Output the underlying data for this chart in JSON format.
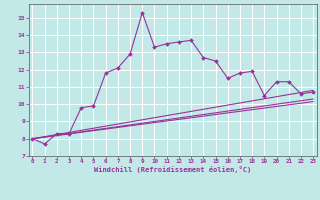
{
  "xlabel": "Windchill (Refroidissement éolien,°C)",
  "bg_color": "#c2e8e8",
  "line_color": "#993399",
  "grid_color": "#ffffff",
  "x_ticks": [
    0,
    1,
    2,
    3,
    4,
    5,
    6,
    7,
    8,
    9,
    10,
    11,
    12,
    13,
    14,
    15,
    16,
    17,
    18,
    19,
    20,
    21,
    22,
    23
  ],
  "y_ticks": [
    7,
    8,
    9,
    10,
    11,
    12,
    13,
    14,
    15
  ],
  "ylim": [
    7.0,
    15.8
  ],
  "xlim": [
    -0.3,
    23.3
  ],
  "series1_x": [
    0,
    1,
    2,
    3,
    4,
    5,
    6,
    7,
    8,
    9,
    10,
    11,
    12,
    13,
    14,
    15,
    16,
    17,
    18,
    19,
    20,
    21,
    22,
    23
  ],
  "series1_y": [
    8.0,
    7.7,
    8.3,
    8.3,
    9.8,
    9.9,
    11.8,
    12.1,
    12.9,
    15.3,
    13.3,
    13.5,
    13.6,
    13.7,
    12.7,
    12.5,
    11.5,
    11.8,
    11.9,
    10.5,
    11.3,
    11.3,
    10.6,
    10.7
  ],
  "series2_x": [
    0,
    23
  ],
  "series2_y": [
    8.0,
    10.8
  ],
  "series3_x": [
    0,
    23
  ],
  "series3_y": [
    8.0,
    10.3
  ],
  "series4_x": [
    0,
    23
  ],
  "series4_y": [
    8.0,
    10.15
  ]
}
